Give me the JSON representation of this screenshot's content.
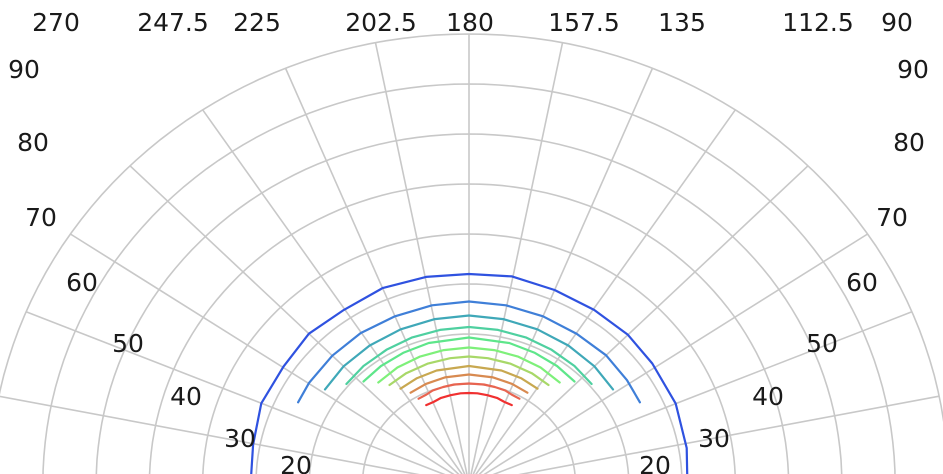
{
  "chart_data": {
    "type": "polar-contour",
    "azimuth_ticks": [
      "270",
      "247.5",
      "225",
      "202.5",
      "180",
      "157.5",
      "135",
      "112.5",
      "90"
    ],
    "polar_ticks": [
      90,
      80,
      70,
      60,
      50,
      40,
      30,
      20
    ],
    "polar_tick_labels": [
      "90",
      "80",
      "70",
      "60",
      "50",
      "40",
      "30",
      "20"
    ],
    "azimuth_range": [
      90,
      270
    ],
    "polar_range": [
      0,
      90
    ],
    "grid": true,
    "contours": [
      {
        "color": "#2f52e0",
        "points": [
          [
            90,
            41
          ],
          [
            100,
            41.5
          ],
          [
            112.5,
            42
          ],
          [
            125,
            42
          ],
          [
            135,
            42.2
          ],
          [
            146,
            42
          ],
          [
            157.5,
            42
          ],
          [
            169,
            42.3
          ],
          [
            180,
            42
          ],
          [
            191,
            42.2
          ],
          [
            202.5,
            42.4
          ],
          [
            214,
            42
          ],
          [
            225,
            42.5
          ],
          [
            236,
            42
          ],
          [
            247.5,
            42.2
          ],
          [
            259,
            41.3
          ],
          [
            270,
            41
          ]
        ]
      },
      {
        "color": "#3f7fd8",
        "points": [
          [
            117,
            36
          ],
          [
            125,
            36.2
          ],
          [
            135,
            36.4
          ],
          [
            146,
            36.2
          ],
          [
            157.5,
            36.3
          ],
          [
            169,
            36.4
          ],
          [
            180,
            36.5
          ],
          [
            191,
            36.4
          ],
          [
            202.5,
            36.3
          ],
          [
            214,
            36.4
          ],
          [
            225,
            36.3
          ],
          [
            236,
            36.2
          ],
          [
            243,
            36
          ]
        ]
      },
      {
        "color": "#3fa8b8",
        "points": [
          [
            125,
            33
          ],
          [
            135,
            33.3
          ],
          [
            146,
            33.4
          ],
          [
            157.5,
            33.5
          ],
          [
            169,
            33.6
          ],
          [
            180,
            33.7
          ],
          [
            191,
            33.6
          ],
          [
            202.5,
            33.5
          ],
          [
            214,
            33.4
          ],
          [
            225,
            33.3
          ],
          [
            235,
            33
          ]
        ]
      },
      {
        "color": "#4fd0a0",
        "points": [
          [
            131,
            30.5
          ],
          [
            140,
            30.8
          ],
          [
            150,
            31
          ],
          [
            160,
            31.2
          ],
          [
            170,
            31.3
          ],
          [
            180,
            31.4
          ],
          [
            190,
            31.3
          ],
          [
            200,
            31.2
          ],
          [
            210,
            31
          ],
          [
            220,
            30.8
          ],
          [
            229,
            30.5
          ]
        ]
      },
      {
        "color": "#5ee68a",
        "points": [
          [
            136,
            28.5
          ],
          [
            145,
            28.8
          ],
          [
            155,
            29
          ],
          [
            165,
            29.2
          ],
          [
            180,
            29.3
          ],
          [
            195,
            29.2
          ],
          [
            205,
            29
          ],
          [
            215,
            28.8
          ],
          [
            224,
            28.5
          ]
        ]
      },
      {
        "color": "#7ef07a",
        "points": [
          [
            140,
            26.5
          ],
          [
            150,
            26.9
          ],
          [
            160,
            27.1
          ],
          [
            170,
            27.2
          ],
          [
            180,
            27.3
          ],
          [
            190,
            27.2
          ],
          [
            200,
            27.1
          ],
          [
            210,
            26.9
          ],
          [
            220,
            26.5
          ]
        ]
      },
      {
        "color": "#a8d868",
        "points": [
          [
            143,
            24.8
          ],
          [
            152,
            25.1
          ],
          [
            162,
            25.3
          ],
          [
            172,
            25.4
          ],
          [
            180,
            25.5
          ],
          [
            188,
            25.4
          ],
          [
            198,
            25.3
          ],
          [
            208,
            25.1
          ],
          [
            217,
            24.8
          ]
        ]
      },
      {
        "color": "#c8a850",
        "points": [
          [
            146,
            23
          ],
          [
            155,
            23.3
          ],
          [
            165,
            23.5
          ],
          [
            180,
            23.6
          ],
          [
            195,
            23.5
          ],
          [
            205,
            23.3
          ],
          [
            214,
            23
          ]
        ]
      },
      {
        "color": "#d88a50",
        "points": [
          [
            149,
            21.3
          ],
          [
            158,
            21.6
          ],
          [
            168,
            21.8
          ],
          [
            180,
            21.9
          ],
          [
            192,
            21.8
          ],
          [
            202,
            21.6
          ],
          [
            211,
            21.3
          ]
        ]
      },
      {
        "color": "#e86450",
        "points": [
          [
            151,
            19.5
          ],
          [
            156,
            19.6
          ],
          [
            160,
            19.9
          ],
          [
            166,
            20
          ],
          [
            172,
            20.1
          ],
          [
            180,
            20.1
          ],
          [
            188,
            20.1
          ],
          [
            194,
            20
          ],
          [
            200,
            19.9
          ],
          [
            204,
            19.6
          ],
          [
            209,
            19.5
          ]
        ]
      },
      {
        "color": "#f03030",
        "points": [
          [
            153,
            17.7
          ],
          [
            158,
            17.7
          ],
          [
            163,
            18
          ],
          [
            169,
            18.1
          ],
          [
            175,
            18.2
          ],
          [
            180,
            18.2
          ],
          [
            185,
            18.2
          ],
          [
            191,
            18.1
          ],
          [
            197,
            18
          ],
          [
            202,
            17.7
          ],
          [
            207,
            17.7
          ]
        ]
      }
    ]
  }
}
